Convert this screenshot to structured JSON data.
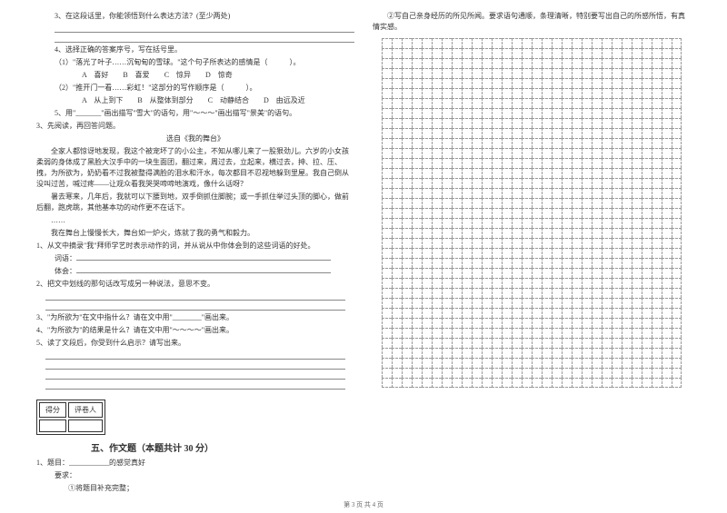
{
  "left": {
    "q3": "3、在这段话里，你能领悟到什么表达方法？(至少两处)",
    "q4": "4、选择正确的答案序号，写在括号里。",
    "q4_1": "（1）\"落光了叶子……沉甸甸的雪球。\"这个句子所表达的感情是（　　　）。",
    "q4_1_opts": [
      "A　喜好",
      "B　喜爱",
      "C　惊异",
      "D　惊奇"
    ],
    "q4_2": "（2）\"推开门一看……彩虹！\"这部分的写作顺序是（　　　）。",
    "q4_2_opts": [
      "A　从上到下",
      "B　从整体到部分",
      "C　动静结合",
      "D　由远及近"
    ],
    "q5": "5、用\"_______\"画出描写\"雪大\"的语句，用\"～～～\"画出描写\"景美\"的语句。",
    "q3b": "3、先阅读，再回答问题。",
    "source": "选自《我的舞台》",
    "p1": "全家人都惊讶地发现，我这个被宠坏了的小公主，不知从哪儿来了一股狠劲儿。六岁的小女孩柔弱的身体成了黑脸大汉手中的一块生面团，翻过来，周过去，立起来，横过去，抻、拉、压、拽，为所欲为，奶奶看不过我被整得满脸的泪水和汗水，每次都目不忍视地躲到里屋。我自己倒从没叫过苦，喊过疼——让观众看我哭哭啼啼地演戏，像什么话呀？",
    "p2": "暑去寒来，几年后，我就可以下腰到地，双手倒抓住脚腕；或一手抓住举过头顶的脚心，做前后翻，跑虎跳，其他基本功的动作更不在话下。",
    "p3": "……",
    "p4": "我在舞台上慢慢长大，舞台如一炉火，炼就了我的勇气和毅力。",
    "sub1": "1、从文中摘录\"我\"拜师学艺时表示动作的词，并从说从中你体会到的这些词语的好处。",
    "sub1_a": "词语：",
    "sub1_b": "体会：",
    "sub2": "2、把文中划线的那句话改写成另一种说法，意思不变。",
    "sub3": "3、\"为所欲为\"在文中指什么？请在文中用\"________\"画出来。",
    "sub4": "4、\"为所欲为\"的结果是什么？请在文中用\"～～～～\"画出来。",
    "sub5": "5、读了文段后，你受到什么启示？请写出来。",
    "score_labels": [
      "得分",
      "评卷人"
    ],
    "section5": "五、作文题（本题共计 30 分）",
    "essay1": "1、题目：___________的感觉真好",
    "essay_req": "要求：",
    "essay_req1": "①将题目补充完整；"
  },
  "right": {
    "essay_req2": "②写自己亲身经历的所见所闻。要求语句通顺，条理清晰，特别要写出自己的所感所悟，有真情实感。",
    "grid": {
      "rows": 35,
      "cols": 30
    }
  },
  "footer": "第 3 页  共 4 页",
  "style": {
    "uline_width_long": 330,
    "uline_width_med": 300
  }
}
